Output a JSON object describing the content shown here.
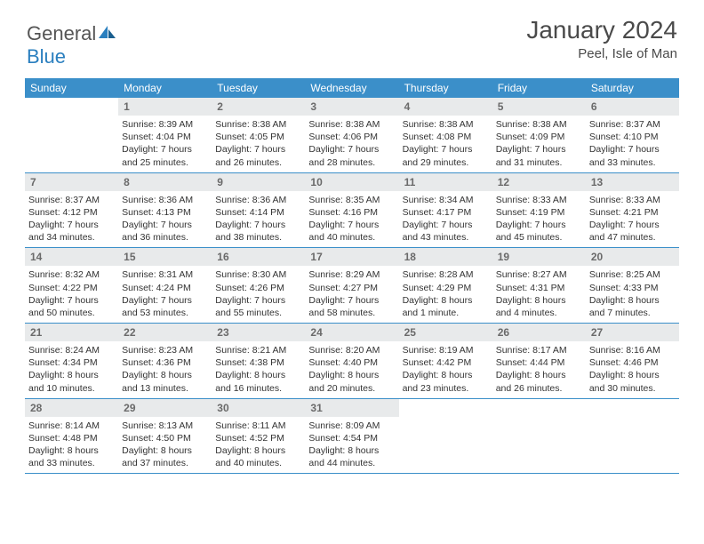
{
  "logo": {
    "text_part1": "General",
    "text_part2": "Blue"
  },
  "header": {
    "month_year": "January 2024",
    "location": "Peel, Isle of Man"
  },
  "colors": {
    "header_bg": "#3b8fc9",
    "daynum_bg": "#e8eaeb",
    "border": "#3b8fc9"
  },
  "day_names": [
    "Sunday",
    "Monday",
    "Tuesday",
    "Wednesday",
    "Thursday",
    "Friday",
    "Saturday"
  ],
  "weeks": [
    [
      {
        "num": "",
        "sunrise": "",
        "sunset": "",
        "daylight": ""
      },
      {
        "num": "1",
        "sunrise": "Sunrise: 8:39 AM",
        "sunset": "Sunset: 4:04 PM",
        "daylight": "Daylight: 7 hours and 25 minutes."
      },
      {
        "num": "2",
        "sunrise": "Sunrise: 8:38 AM",
        "sunset": "Sunset: 4:05 PM",
        "daylight": "Daylight: 7 hours and 26 minutes."
      },
      {
        "num": "3",
        "sunrise": "Sunrise: 8:38 AM",
        "sunset": "Sunset: 4:06 PM",
        "daylight": "Daylight: 7 hours and 28 minutes."
      },
      {
        "num": "4",
        "sunrise": "Sunrise: 8:38 AM",
        "sunset": "Sunset: 4:08 PM",
        "daylight": "Daylight: 7 hours and 29 minutes."
      },
      {
        "num": "5",
        "sunrise": "Sunrise: 8:38 AM",
        "sunset": "Sunset: 4:09 PM",
        "daylight": "Daylight: 7 hours and 31 minutes."
      },
      {
        "num": "6",
        "sunrise": "Sunrise: 8:37 AM",
        "sunset": "Sunset: 4:10 PM",
        "daylight": "Daylight: 7 hours and 33 minutes."
      }
    ],
    [
      {
        "num": "7",
        "sunrise": "Sunrise: 8:37 AM",
        "sunset": "Sunset: 4:12 PM",
        "daylight": "Daylight: 7 hours and 34 minutes."
      },
      {
        "num": "8",
        "sunrise": "Sunrise: 8:36 AM",
        "sunset": "Sunset: 4:13 PM",
        "daylight": "Daylight: 7 hours and 36 minutes."
      },
      {
        "num": "9",
        "sunrise": "Sunrise: 8:36 AM",
        "sunset": "Sunset: 4:14 PM",
        "daylight": "Daylight: 7 hours and 38 minutes."
      },
      {
        "num": "10",
        "sunrise": "Sunrise: 8:35 AM",
        "sunset": "Sunset: 4:16 PM",
        "daylight": "Daylight: 7 hours and 40 minutes."
      },
      {
        "num": "11",
        "sunrise": "Sunrise: 8:34 AM",
        "sunset": "Sunset: 4:17 PM",
        "daylight": "Daylight: 7 hours and 43 minutes."
      },
      {
        "num": "12",
        "sunrise": "Sunrise: 8:33 AM",
        "sunset": "Sunset: 4:19 PM",
        "daylight": "Daylight: 7 hours and 45 minutes."
      },
      {
        "num": "13",
        "sunrise": "Sunrise: 8:33 AM",
        "sunset": "Sunset: 4:21 PM",
        "daylight": "Daylight: 7 hours and 47 minutes."
      }
    ],
    [
      {
        "num": "14",
        "sunrise": "Sunrise: 8:32 AM",
        "sunset": "Sunset: 4:22 PM",
        "daylight": "Daylight: 7 hours and 50 minutes."
      },
      {
        "num": "15",
        "sunrise": "Sunrise: 8:31 AM",
        "sunset": "Sunset: 4:24 PM",
        "daylight": "Daylight: 7 hours and 53 minutes."
      },
      {
        "num": "16",
        "sunrise": "Sunrise: 8:30 AM",
        "sunset": "Sunset: 4:26 PM",
        "daylight": "Daylight: 7 hours and 55 minutes."
      },
      {
        "num": "17",
        "sunrise": "Sunrise: 8:29 AM",
        "sunset": "Sunset: 4:27 PM",
        "daylight": "Daylight: 7 hours and 58 minutes."
      },
      {
        "num": "18",
        "sunrise": "Sunrise: 8:28 AM",
        "sunset": "Sunset: 4:29 PM",
        "daylight": "Daylight: 8 hours and 1 minute."
      },
      {
        "num": "19",
        "sunrise": "Sunrise: 8:27 AM",
        "sunset": "Sunset: 4:31 PM",
        "daylight": "Daylight: 8 hours and 4 minutes."
      },
      {
        "num": "20",
        "sunrise": "Sunrise: 8:25 AM",
        "sunset": "Sunset: 4:33 PM",
        "daylight": "Daylight: 8 hours and 7 minutes."
      }
    ],
    [
      {
        "num": "21",
        "sunrise": "Sunrise: 8:24 AM",
        "sunset": "Sunset: 4:34 PM",
        "daylight": "Daylight: 8 hours and 10 minutes."
      },
      {
        "num": "22",
        "sunrise": "Sunrise: 8:23 AM",
        "sunset": "Sunset: 4:36 PM",
        "daylight": "Daylight: 8 hours and 13 minutes."
      },
      {
        "num": "23",
        "sunrise": "Sunrise: 8:21 AM",
        "sunset": "Sunset: 4:38 PM",
        "daylight": "Daylight: 8 hours and 16 minutes."
      },
      {
        "num": "24",
        "sunrise": "Sunrise: 8:20 AM",
        "sunset": "Sunset: 4:40 PM",
        "daylight": "Daylight: 8 hours and 20 minutes."
      },
      {
        "num": "25",
        "sunrise": "Sunrise: 8:19 AM",
        "sunset": "Sunset: 4:42 PM",
        "daylight": "Daylight: 8 hours and 23 minutes."
      },
      {
        "num": "26",
        "sunrise": "Sunrise: 8:17 AM",
        "sunset": "Sunset: 4:44 PM",
        "daylight": "Daylight: 8 hours and 26 minutes."
      },
      {
        "num": "27",
        "sunrise": "Sunrise: 8:16 AM",
        "sunset": "Sunset: 4:46 PM",
        "daylight": "Daylight: 8 hours and 30 minutes."
      }
    ],
    [
      {
        "num": "28",
        "sunrise": "Sunrise: 8:14 AM",
        "sunset": "Sunset: 4:48 PM",
        "daylight": "Daylight: 8 hours and 33 minutes."
      },
      {
        "num": "29",
        "sunrise": "Sunrise: 8:13 AM",
        "sunset": "Sunset: 4:50 PM",
        "daylight": "Daylight: 8 hours and 37 minutes."
      },
      {
        "num": "30",
        "sunrise": "Sunrise: 8:11 AM",
        "sunset": "Sunset: 4:52 PM",
        "daylight": "Daylight: 8 hours and 40 minutes."
      },
      {
        "num": "31",
        "sunrise": "Sunrise: 8:09 AM",
        "sunset": "Sunset: 4:54 PM",
        "daylight": "Daylight: 8 hours and 44 minutes."
      },
      {
        "num": "",
        "sunrise": "",
        "sunset": "",
        "daylight": ""
      },
      {
        "num": "",
        "sunrise": "",
        "sunset": "",
        "daylight": ""
      },
      {
        "num": "",
        "sunrise": "",
        "sunset": "",
        "daylight": ""
      }
    ]
  ]
}
